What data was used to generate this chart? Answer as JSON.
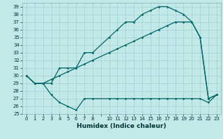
{
  "xlabel": "Humidex (Indice chaleur)",
  "bg_color": "#c2e8e8",
  "grid_color": "#98cccc",
  "line_color": "#006666",
  "ylim": [
    25,
    39.5
  ],
  "yticks": [
    25,
    26,
    27,
    28,
    29,
    30,
    31,
    32,
    33,
    34,
    35,
    36,
    37,
    38,
    39
  ],
  "xtick_labels": [
    "0",
    "1",
    "2",
    "3",
    "4",
    "5",
    "6",
    "7",
    "8",
    "",
    "10",
    "11",
    "12",
    "13",
    "14",
    "15",
    "16",
    "17",
    "18",
    "19",
    "20",
    "21",
    "22",
    "23"
  ],
  "xlim": [
    -0.5,
    23.5
  ],
  "series1_x": [
    0,
    1,
    2,
    3,
    4,
    5,
    6,
    7,
    8,
    10,
    11,
    12,
    13,
    14,
    15,
    16,
    17,
    18,
    19,
    20,
    21,
    22,
    23
  ],
  "series1_y": [
    30,
    29,
    29,
    29,
    31,
    31,
    31,
    33,
    33,
    35,
    36,
    37,
    37,
    38,
    38.5,
    39,
    39,
    38.5,
    38,
    37,
    35,
    27,
    27.5
  ],
  "series2_x": [
    0,
    1,
    2,
    3,
    4,
    5,
    6,
    7,
    8,
    10,
    11,
    12,
    13,
    14,
    15,
    16,
    17,
    18,
    19,
    20,
    21,
    22,
    23
  ],
  "series2_y": [
    30,
    29,
    29,
    27.5,
    26.5,
    26,
    25.5,
    27,
    27,
    27,
    27,
    27,
    27,
    27,
    27,
    27,
    27,
    27,
    27,
    27,
    27,
    26.5,
    27.5
  ],
  "series3_x": [
    0,
    1,
    2,
    3,
    4,
    5,
    6,
    7,
    8,
    10,
    11,
    12,
    13,
    14,
    15,
    16,
    17,
    18,
    19,
    20,
    21,
    22,
    23
  ],
  "series3_y": [
    30,
    29,
    29,
    29.5,
    30,
    30.5,
    31,
    31.5,
    32,
    33,
    33.5,
    34,
    34.5,
    35,
    35.5,
    36,
    36.5,
    37,
    37,
    37,
    35,
    27,
    27.5
  ],
  "marker_size": 2.0,
  "line_width": 0.9,
  "tick_fontsize": 5.0,
  "xlabel_fontsize": 6.5
}
